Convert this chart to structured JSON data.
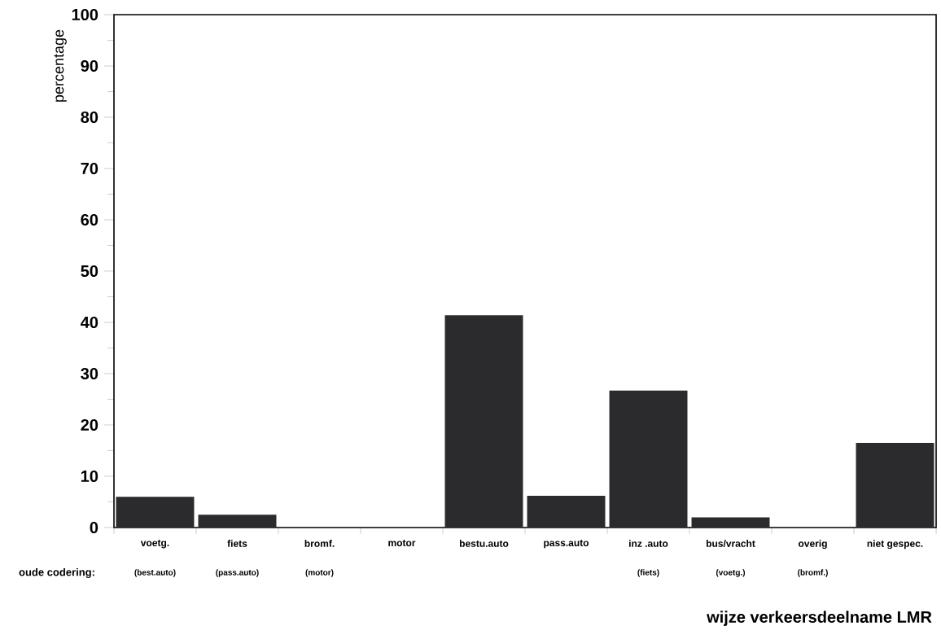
{
  "chart_data": {
    "type": "bar",
    "ylabel": "percentage",
    "xlabel": "wijze verkeersdeelname LMR",
    "categories": [
      "voetg.",
      "fiets",
      "bromf.",
      "motor",
      "bestu.auto",
      "pass.auto",
      "inz .auto",
      "bus/vracht",
      "overig",
      "niet gespec."
    ],
    "values": [
      6.0,
      2.5,
      0,
      0,
      41.4,
      6.2,
      26.7,
      2.0,
      0,
      16.5
    ],
    "color": "#2b2b2d",
    "ylim": [
      0,
      100
    ],
    "yticks": [
      0,
      10,
      20,
      30,
      40,
      50,
      60,
      70,
      80,
      90,
      100
    ],
    "grid": false,
    "annotations": [
      "oude codering:",
      "(best.auto)",
      "(pass.auto)",
      "(motor)",
      "(fiets)",
      "(voetg.)",
      "(bromf.)"
    ]
  }
}
